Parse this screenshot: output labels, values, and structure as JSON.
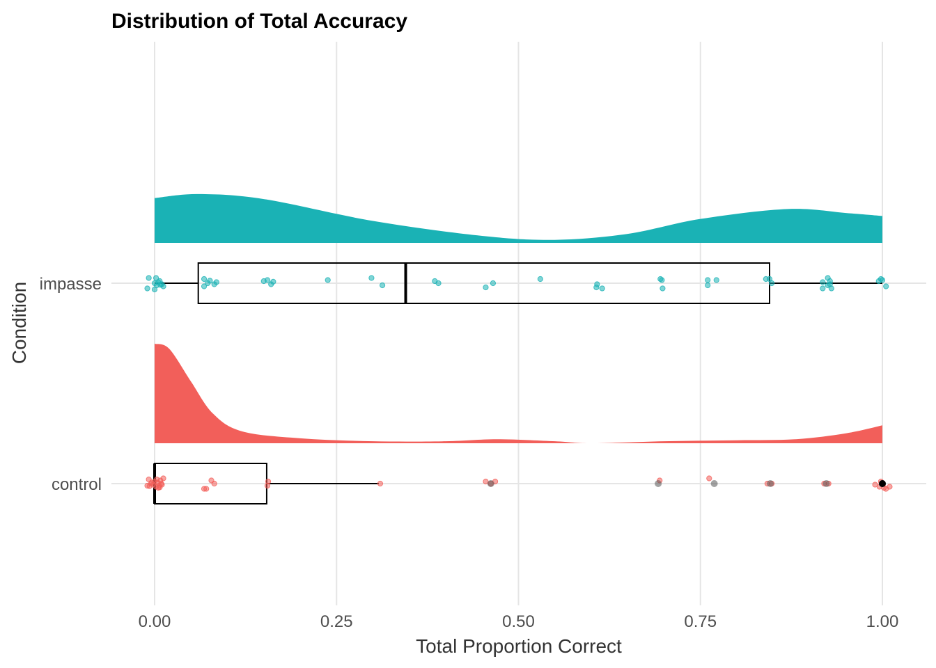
{
  "chart_data": {
    "type": "raincloud",
    "title": "Distribution of Total Accuracy",
    "xlabel": "Total Proportion Correct",
    "ylabel": "Condition",
    "xlim": [
      0,
      1
    ],
    "x_ticks": [
      0,
      0.25,
      0.5,
      0.75,
      1
    ],
    "x_tick_labels": [
      "0.00",
      "0.25",
      "0.50",
      "0.75",
      "1.00"
    ],
    "categories": [
      "impasse",
      "control"
    ],
    "grid": true,
    "colors": {
      "impasse": "#1AB2B5",
      "control": "#F25F5A",
      "outlier": "#555555"
    },
    "series": [
      {
        "name": "impasse",
        "box": {
          "min": 0.0,
          "q1": 0.06,
          "median": 0.345,
          "q3": 0.845,
          "max": 1.0
        },
        "density": [
          [
            0.0,
            0.45
          ],
          [
            0.06,
            0.49
          ],
          [
            0.15,
            0.44
          ],
          [
            0.3,
            0.22
          ],
          [
            0.45,
            0.07
          ],
          [
            0.55,
            0.03
          ],
          [
            0.65,
            0.09
          ],
          [
            0.75,
            0.24
          ],
          [
            0.87,
            0.34
          ],
          [
            0.95,
            0.3
          ],
          [
            1.0,
            0.27
          ]
        ],
        "points": [
          [
            0.0,
            0.3
          ],
          [
            0.002,
            -0.25
          ],
          [
            0.003,
            0.1
          ],
          [
            0.005,
            -0.05
          ],
          [
            0.0,
            0.0
          ],
          [
            0.01,
            0.05
          ],
          [
            0.007,
            -0.1
          ],
          [
            0.012,
            0.15
          ],
          [
            -0.01,
            0.25
          ],
          [
            -0.008,
            -0.25
          ],
          [
            0.008,
            0.08
          ],
          [
            0.068,
            -0.2
          ],
          [
            0.068,
            0.15
          ],
          [
            0.073,
            0.0
          ],
          [
            0.082,
            0.05
          ],
          [
            0.085,
            -0.05
          ],
          [
            0.076,
            -0.12
          ],
          [
            0.15,
            -0.1
          ],
          [
            0.155,
            -0.15
          ],
          [
            0.16,
            0.05
          ],
          [
            0.163,
            -0.07
          ],
          [
            0.238,
            -0.15
          ],
          [
            0.298,
            -0.25
          ],
          [
            0.313,
            0.1
          ],
          [
            0.385,
            -0.1
          ],
          [
            0.39,
            0.0
          ],
          [
            0.455,
            0.2
          ],
          [
            0.465,
            0.0
          ],
          [
            0.53,
            -0.2
          ],
          [
            0.608,
            0.05
          ],
          [
            0.615,
            0.25
          ],
          [
            0.607,
            0.2
          ],
          [
            0.695,
            -0.2
          ],
          [
            0.698,
            0.25
          ],
          [
            0.697,
            -0.15
          ],
          [
            0.76,
            -0.15
          ],
          [
            0.76,
            0.1
          ],
          [
            0.772,
            -0.15
          ],
          [
            0.84,
            -0.2
          ],
          [
            0.845,
            -0.2
          ],
          [
            0.848,
            0.0
          ],
          [
            0.918,
            0.25
          ],
          [
            0.918,
            -0.05
          ],
          [
            0.925,
            0.1
          ],
          [
            0.928,
            -0.1
          ],
          [
            0.928,
            0.05
          ],
          [
            0.925,
            -0.25
          ],
          [
            0.93,
            0.25
          ],
          [
            0.995,
            -0.1
          ],
          [
            0.998,
            -0.2
          ],
          [
            1.0,
            -0.15
          ],
          [
            1.005,
            0.15
          ]
        ]
      },
      {
        "name": "control",
        "box": {
          "min": 0.0,
          "q1": 0.0,
          "median": 0.0,
          "q3": 0.154,
          "max": 0.308
        },
        "density": [
          [
            0.0,
            1.0
          ],
          [
            0.02,
            0.95
          ],
          [
            0.05,
            0.62
          ],
          [
            0.08,
            0.3
          ],
          [
            0.12,
            0.12
          ],
          [
            0.2,
            0.05
          ],
          [
            0.3,
            0.02
          ],
          [
            0.4,
            0.02
          ],
          [
            0.47,
            0.04
          ],
          [
            0.55,
            0.02
          ],
          [
            0.6,
            0.0
          ],
          [
            0.7,
            0.02
          ],
          [
            0.8,
            0.03
          ],
          [
            0.88,
            0.04
          ],
          [
            0.95,
            0.1
          ],
          [
            1.0,
            0.18
          ]
        ],
        "points": [
          [
            -0.01,
            0.1
          ],
          [
            -0.008,
            -0.2
          ],
          [
            -0.005,
            0.0
          ],
          [
            -0.002,
            0.05
          ],
          [
            0.0,
            -0.1
          ],
          [
            0.002,
            0.15
          ],
          [
            0.004,
            -0.05
          ],
          [
            0.006,
            0.1
          ],
          [
            0.008,
            -0.15
          ],
          [
            0.01,
            0.05
          ],
          [
            -0.007,
            0.12
          ],
          [
            0.003,
            -0.2
          ],
          [
            0.005,
            0.2
          ],
          [
            0.009,
            0.0
          ],
          [
            0.012,
            -0.25
          ],
          [
            -0.004,
            -0.05
          ],
          [
            0.007,
            0.18
          ],
          [
            0.068,
            0.25
          ],
          [
            0.071,
            0.25
          ],
          [
            0.078,
            -0.15
          ],
          [
            0.082,
            0.0
          ],
          [
            0.155,
            0.1
          ],
          [
            0.156,
            -0.1
          ],
          [
            0.31,
            0.0
          ],
          [
            0.455,
            -0.1
          ],
          [
            0.462,
            0.0
          ],
          [
            0.468,
            -0.1
          ],
          [
            0.694,
            -0.15
          ],
          [
            0.762,
            -0.25
          ],
          [
            0.842,
            0.0
          ],
          [
            0.848,
            0.0
          ],
          [
            0.92,
            0.0
          ],
          [
            0.926,
            0.0
          ],
          [
            0.99,
            0.05
          ],
          [
            0.996,
            0.15
          ],
          [
            0.998,
            -0.1
          ],
          [
            1.0,
            0.0
          ],
          [
            1.002,
            0.2
          ],
          [
            1.005,
            0.25
          ],
          [
            1.01,
            0.15
          ]
        ],
        "outliers": [
          0.462,
          0.692,
          0.769,
          0.846,
          0.923,
          1.0
        ]
      }
    ]
  }
}
